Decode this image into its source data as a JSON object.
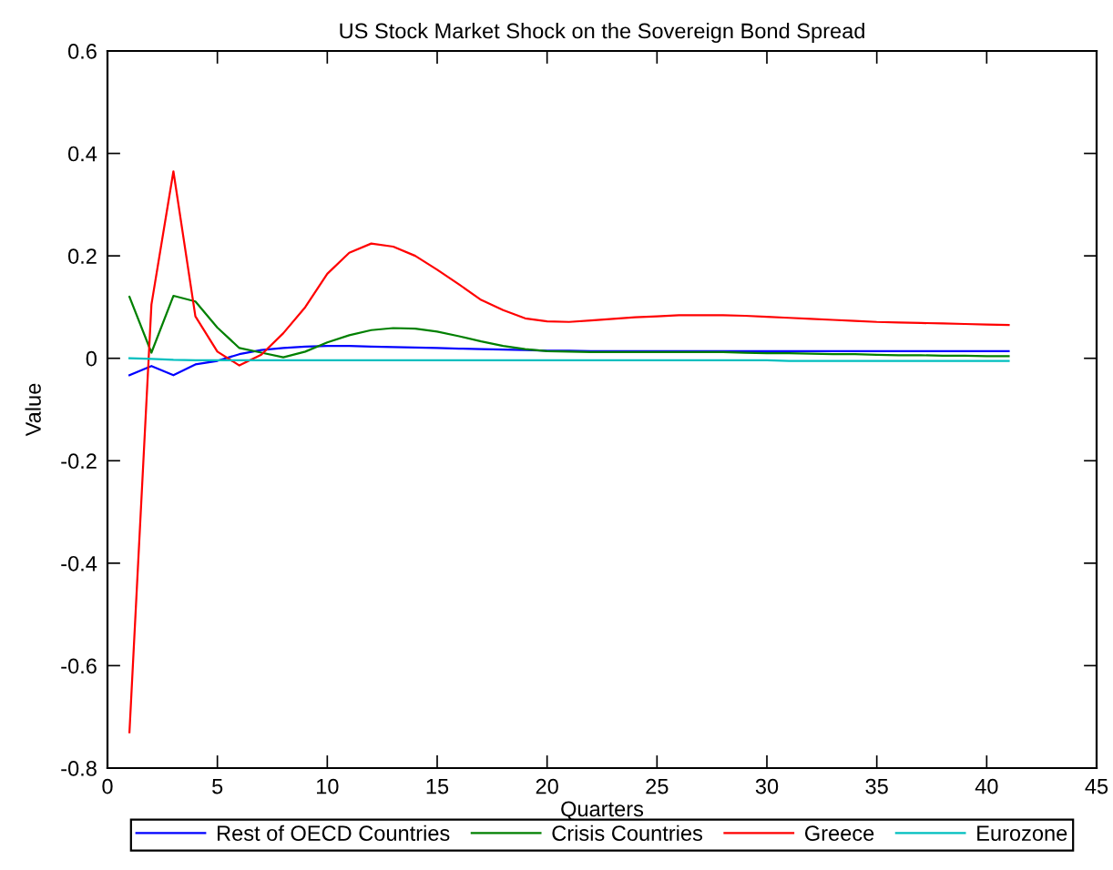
{
  "chart_data": {
    "type": "line",
    "title": "US Stock Market Shock on the Sovereign Bond Spread",
    "xlabel": "Quarters",
    "ylabel": "Value",
    "x": [
      1,
      2,
      3,
      4,
      5,
      6,
      7,
      8,
      9,
      10,
      11,
      12,
      13,
      14,
      15,
      16,
      17,
      18,
      19,
      20,
      21,
      22,
      23,
      24,
      25,
      26,
      27,
      28,
      29,
      30,
      31,
      32,
      33,
      34,
      35,
      36,
      37,
      38,
      39,
      40,
      41
    ],
    "series": [
      {
        "name": "Rest of OECD Countries",
        "color": "#0000ff",
        "values": [
          -0.033,
          -0.015,
          -0.033,
          -0.012,
          -0.005,
          0.008,
          0.016,
          0.02,
          0.023,
          0.024,
          0.024,
          0.023,
          0.022,
          0.021,
          0.02,
          0.019,
          0.018,
          0.017,
          0.016,
          0.015,
          0.015,
          0.014,
          0.014,
          0.014,
          0.014,
          0.014,
          0.014,
          0.014,
          0.014,
          0.014,
          0.014,
          0.014,
          0.014,
          0.014,
          0.014,
          0.014,
          0.014,
          0.014,
          0.014,
          0.014,
          0.014
        ]
      },
      {
        "name": "Crisis Countries",
        "color": "#008000",
        "values": [
          0.12,
          0.011,
          0.122,
          0.111,
          0.06,
          0.02,
          0.011,
          0.002,
          0.013,
          0.031,
          0.045,
          0.055,
          0.059,
          0.058,
          0.052,
          0.043,
          0.033,
          0.024,
          0.018,
          0.014,
          0.013,
          0.012,
          0.012,
          0.012,
          0.012,
          0.012,
          0.012,
          0.012,
          0.011,
          0.01,
          0.01,
          0.009,
          0.008,
          0.008,
          0.007,
          0.006,
          0.006,
          0.005,
          0.005,
          0.004,
          0.004
        ]
      },
      {
        "name": "Greece",
        "color": "#ff0000",
        "values": [
          -0.73,
          0.105,
          0.365,
          0.082,
          0.013,
          -0.014,
          0.007,
          0.049,
          0.1,
          0.165,
          0.206,
          0.224,
          0.218,
          0.2,
          0.173,
          0.144,
          0.114,
          0.094,
          0.078,
          0.072,
          0.071,
          0.074,
          0.077,
          0.08,
          0.082,
          0.084,
          0.084,
          0.084,
          0.083,
          0.081,
          0.079,
          0.077,
          0.075,
          0.073,
          0.071,
          0.07,
          0.069,
          0.068,
          0.067,
          0.066,
          0.065
        ]
      },
      {
        "name": "Eurozone",
        "color": "#00bfbf",
        "values": [
          0.0,
          -0.001,
          -0.003,
          -0.004,
          -0.004,
          -0.004,
          -0.004,
          -0.004,
          -0.004,
          -0.004,
          -0.004,
          -0.004,
          -0.004,
          -0.004,
          -0.004,
          -0.004,
          -0.004,
          -0.004,
          -0.004,
          -0.004,
          -0.004,
          -0.004,
          -0.004,
          -0.004,
          -0.004,
          -0.004,
          -0.004,
          -0.004,
          -0.004,
          -0.004,
          -0.005,
          -0.005,
          -0.005,
          -0.005,
          -0.005,
          -0.005,
          -0.005,
          -0.005,
          -0.005,
          -0.005,
          -0.005
        ]
      }
    ],
    "xlim": [
      0,
      45
    ],
    "ylim": [
      -0.8,
      0.6
    ],
    "xticks": [
      0,
      5,
      10,
      15,
      20,
      25,
      30,
      35,
      40,
      45
    ],
    "yticks": [
      -0.8,
      -0.6,
      -0.4,
      -0.2,
      0,
      0.2,
      0.4,
      0.6
    ],
    "legend": "bottom",
    "line_style": "solid"
  }
}
